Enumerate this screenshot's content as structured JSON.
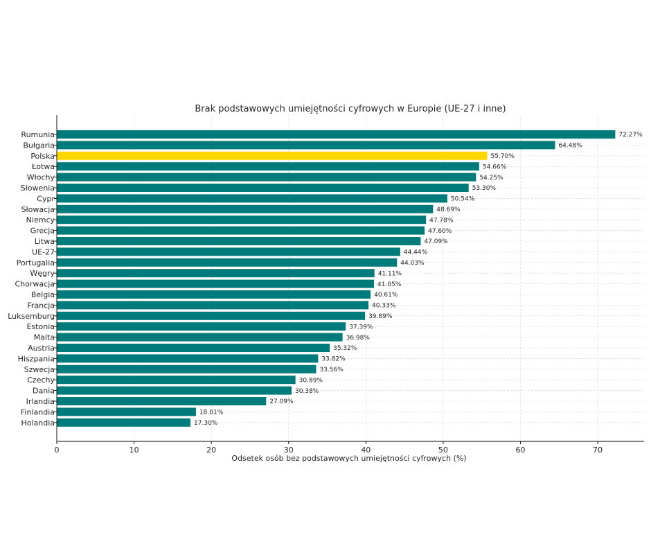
{
  "chart_data": {
    "type": "bar",
    "orientation": "horizontal",
    "title": "Brak podstawowych umiejętności cyfrowych w Europie (UE-27 i inne)",
    "xlabel": "Odsetek osób bez podstawowych umiejętności cyfrowych (%)",
    "ylabel": "",
    "xlim": [
      0,
      76
    ],
    "xticks": [
      0,
      10,
      20,
      30,
      40,
      50,
      60,
      70
    ],
    "grid": true,
    "categories": [
      "Rumunia",
      "Bułgaria",
      "Polska",
      "Łotwa",
      "Włochy",
      "Słowenia",
      "Cypr",
      "Słowacja",
      "Niemcy",
      "Grecja",
      "Litwa",
      "UE-27",
      "Portugalia",
      "Węgry",
      "Chorwacja",
      "Belgia",
      "Francja",
      "Luksemburg",
      "Estonia",
      "Malta",
      "Austria",
      "Hiszpania",
      "Szwecja",
      "Czechy",
      "Dania",
      "Irlandia",
      "Finlandia",
      "Holandia"
    ],
    "values": [
      72.27,
      64.48,
      55.7,
      54.66,
      54.25,
      53.3,
      50.54,
      48.69,
      47.78,
      47.6,
      47.09,
      44.44,
      44.03,
      41.11,
      41.05,
      40.61,
      40.33,
      39.89,
      37.39,
      36.98,
      35.32,
      33.82,
      33.56,
      30.89,
      30.38,
      27.09,
      18.01,
      17.3
    ],
    "value_labels": [
      "72.27%",
      "64.48%",
      "55.70%",
      "54.66%",
      "54.25%",
      "53.30%",
      "50.54%",
      "48.69%",
      "47.78%",
      "47.60%",
      "47.09%",
      "44.44%",
      "44.03%",
      "41.11%",
      "41.05%",
      "40.61%",
      "40.33%",
      "39.89%",
      "37.39%",
      "36.98%",
      "35.32%",
      "33.82%",
      "33.56%",
      "30.89%",
      "30.38%",
      "27.09%",
      "18.01%",
      "17.30%"
    ],
    "highlight": "Polska",
    "colors": {
      "default": "#007b7b",
      "highlight": "#ffd700"
    }
  }
}
